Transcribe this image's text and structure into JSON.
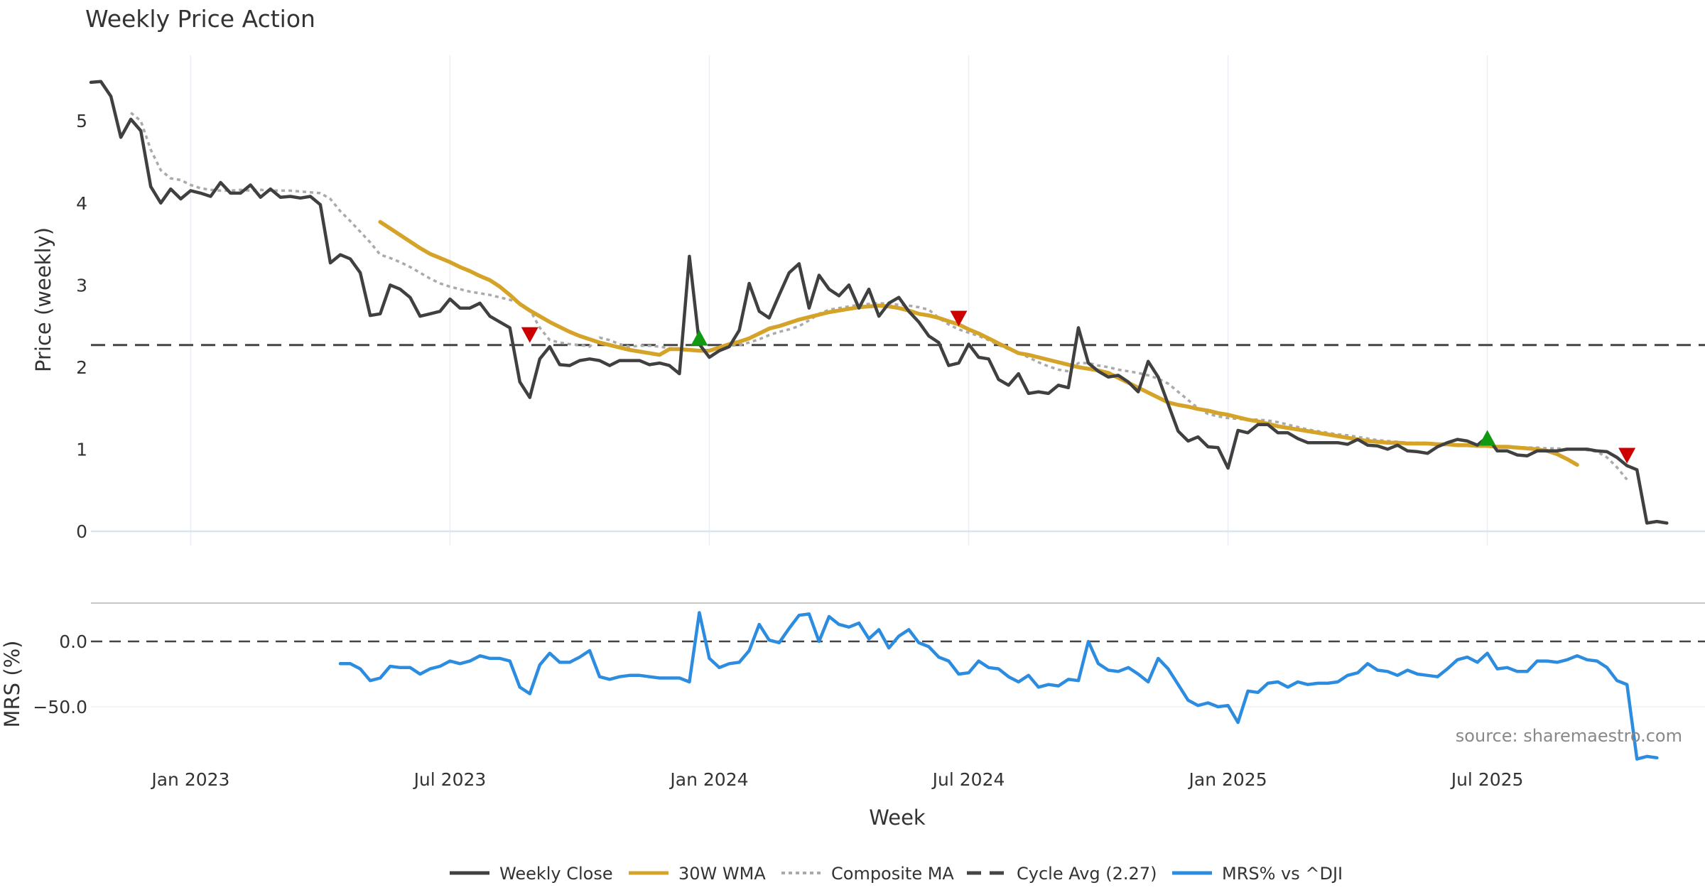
{
  "chart_data": {
    "type": "line",
    "title": "Weekly Price Action",
    "xlabel": "Week",
    "source": "source: sharemaestro.com",
    "x_ticks": [
      {
        "label": "Jan 2023",
        "week": 10
      },
      {
        "label": "Jul 2023",
        "week": 36
      },
      {
        "label": "Jan 2024",
        "week": 62
      },
      {
        "label": "Jul 2024",
        "week": 88
      },
      {
        "label": "Jan 2025",
        "week": 114
      },
      {
        "label": "Jul 2025",
        "week": 140
      }
    ],
    "price_panel": {
      "ylabel": "Price (weekly)",
      "ylim": [
        0,
        5.85
      ],
      "yticks": [
        0,
        1,
        2,
        3,
        4,
        5
      ],
      "cycle_avg": 2.27,
      "series": [
        {
          "name": "Weekly Close",
          "color": "#404040",
          "start": 0,
          "values": [
            5.47,
            5.48,
            5.3,
            4.8,
            5.02,
            4.88,
            4.2,
            4.0,
            4.17,
            4.05,
            4.15,
            4.12,
            4.08,
            4.25,
            4.12,
            4.12,
            4.22,
            4.07,
            4.17,
            4.07,
            4.08,
            4.06,
            4.08,
            3.98,
            3.27,
            3.37,
            3.32,
            3.15,
            2.63,
            2.65,
            3.0,
            2.95,
            2.85,
            2.62,
            2.65,
            2.68,
            2.83,
            2.72,
            2.72,
            2.78,
            2.62,
            2.55,
            2.48,
            1.82,
            1.63,
            2.1,
            2.25,
            2.03,
            2.02,
            2.08,
            2.1,
            2.08,
            2.02,
            2.08,
            2.08,
            2.08,
            2.03,
            2.05,
            2.02,
            1.92,
            3.35,
            2.28,
            2.12,
            2.2,
            2.25,
            2.45,
            3.02,
            2.68,
            2.6,
            2.88,
            3.15,
            3.26,
            2.72,
            3.12,
            2.95,
            2.87,
            3.0,
            2.72,
            2.95,
            2.62,
            2.78,
            2.85,
            2.68,
            2.55,
            2.38,
            2.3,
            2.02,
            2.05,
            2.28,
            2.12,
            2.1,
            1.85,
            1.78,
            1.92,
            1.68,
            1.7,
            1.68,
            1.78,
            1.75,
            2.48,
            2.05,
            1.95,
            1.88,
            1.9,
            1.82,
            1.7,
            2.07,
            1.88,
            1.55,
            1.22,
            1.1,
            1.15,
            1.03,
            1.02,
            0.77,
            1.23,
            1.2,
            1.3,
            1.3,
            1.2,
            1.2,
            1.13,
            1.08,
            1.08,
            1.08,
            1.08,
            1.06,
            1.12,
            1.05,
            1.04,
            1.0,
            1.05,
            0.98,
            0.97,
            0.95,
            1.03,
            1.08,
            1.12,
            1.1,
            1.05,
            1.15,
            0.98,
            0.98,
            0.93,
            0.92,
            0.98,
            0.98,
            0.98,
            1.0,
            1.0,
            1.0,
            0.98,
            0.97,
            0.9,
            0.8,
            0.75,
            0.1,
            0.12,
            0.1
          ]
        },
        {
          "name": "30W WMA",
          "color": "#D4A328",
          "start": 29,
          "values": [
            3.77,
            3.69,
            3.61,
            3.53,
            3.45,
            3.38,
            3.33,
            3.28,
            3.22,
            3.17,
            3.11,
            3.06,
            2.98,
            2.88,
            2.77,
            2.69,
            2.62,
            2.55,
            2.49,
            2.43,
            2.38,
            2.34,
            2.3,
            2.27,
            2.24,
            2.21,
            2.19,
            2.17,
            2.15,
            2.22,
            2.22,
            2.21,
            2.2,
            2.2,
            2.24,
            2.28,
            2.31,
            2.35,
            2.41,
            2.47,
            2.5,
            2.54,
            2.58,
            2.61,
            2.64,
            2.67,
            2.69,
            2.71,
            2.73,
            2.74,
            2.75,
            2.74,
            2.72,
            2.69,
            2.65,
            2.63,
            2.6,
            2.56,
            2.52,
            2.46,
            2.41,
            2.35,
            2.29,
            2.23,
            2.17,
            2.15,
            2.12,
            2.09,
            2.06,
            2.03,
            2.0,
            1.98,
            1.96,
            1.93,
            1.87,
            1.81,
            1.75,
            1.69,
            1.63,
            1.57,
            1.54,
            1.52,
            1.49,
            1.47,
            1.44,
            1.42,
            1.39,
            1.36,
            1.34,
            1.31,
            1.28,
            1.26,
            1.24,
            1.22,
            1.2,
            1.18,
            1.16,
            1.14,
            1.12,
            1.1,
            1.09,
            1.08,
            1.08,
            1.07,
            1.07,
            1.07,
            1.06,
            1.06,
            1.05,
            1.05,
            1.04,
            1.04,
            1.03,
            1.03,
            1.02,
            1.01,
            1.0,
            0.98,
            0.94,
            0.88,
            0.81
          ]
        },
        {
          "name": "Composite MA",
          "color": "#AAAAAA",
          "start": 4,
          "values": [
            5.1,
            5.0,
            4.65,
            4.4,
            4.3,
            4.28,
            4.22,
            4.18,
            4.16,
            4.15,
            4.15,
            4.16,
            4.15,
            4.16,
            4.15,
            4.15,
            4.15,
            4.14,
            4.13,
            4.12,
            4.05,
            3.9,
            3.78,
            3.65,
            3.52,
            3.37,
            3.33,
            3.28,
            3.22,
            3.15,
            3.08,
            3.02,
            2.98,
            2.95,
            2.92,
            2.9,
            2.88,
            2.85,
            2.82,
            2.78,
            2.7,
            2.48,
            2.33,
            2.3,
            2.28,
            2.27,
            2.25,
            2.36,
            2.33,
            2.28,
            2.25,
            2.26,
            2.26,
            2.25,
            2.23,
            2.22,
            2.2,
            2.2,
            2.21,
            2.24,
            2.26,
            2.27,
            2.3,
            2.34,
            2.39,
            2.43,
            2.46,
            2.5,
            2.57,
            2.65,
            2.7,
            2.72,
            2.74,
            2.76,
            2.77,
            2.78,
            2.77,
            2.76,
            2.75,
            2.73,
            2.7,
            2.6,
            2.52,
            2.46,
            2.42,
            2.38,
            2.33,
            2.27,
            2.22,
            2.17,
            2.12,
            2.06,
            2.01,
            1.97,
            1.95,
            2.05,
            2.05,
            2.02,
            2.0,
            1.97,
            1.95,
            1.93,
            1.9,
            1.86,
            1.8,
            1.7,
            1.6,
            1.5,
            1.43,
            1.4,
            1.38,
            1.37,
            1.36,
            1.36,
            1.35,
            1.33,
            1.3,
            1.27,
            1.24,
            1.22,
            1.2,
            1.18,
            1.17,
            1.15,
            1.13,
            1.11,
            1.1,
            1.09,
            1.08,
            1.08,
            1.08,
            1.07,
            1.06,
            1.06,
            1.05,
            1.05,
            1.04,
            1.03,
            1.03,
            1.02,
            1.02,
            1.02,
            1.01,
            1.01,
            1.0,
            1.0,
            0.99,
            0.97,
            0.9,
            0.78,
            0.63
          ]
        }
      ],
      "signals": [
        {
          "type": "sell",
          "week": 44,
          "value": 2.4,
          "color": "#CC0000"
        },
        {
          "type": "buy",
          "week": 61,
          "value": 2.35,
          "color": "#119911"
        },
        {
          "type": "sell",
          "week": 87,
          "value": 2.6,
          "color": "#CC0000"
        },
        {
          "type": "buy",
          "week": 140,
          "value": 1.13,
          "color": "#119911"
        },
        {
          "type": "sell",
          "week": 154,
          "value": 0.93,
          "color": "#CC0000"
        }
      ]
    },
    "mrs_panel": {
      "ylabel": "MRS (%)",
      "ylim": [
        -92,
        30
      ],
      "yticks": [
        {
          "v": 0,
          "label": "0.0"
        },
        {
          "v": -50,
          "label": "−50.0"
        }
      ],
      "series": [
        {
          "name": "MRS% vs ^DJI",
          "color": "#2B8CE0",
          "start": 25,
          "values": [
            -17,
            -17,
            -21,
            -30,
            -28,
            -19,
            -20,
            -20,
            -25,
            -21,
            -19,
            -15,
            -17,
            -15,
            -11,
            -13,
            -13,
            -15,
            -35,
            -40,
            -18,
            -9,
            -16,
            -16,
            -12,
            -7,
            -27,
            -29,
            -27,
            -26,
            -26,
            -27,
            -28,
            -28,
            -28,
            -31,
            22,
            -13,
            -20,
            -17,
            -16,
            -7,
            13,
            1,
            -1,
            10,
            20,
            21,
            0,
            19,
            13,
            11,
            14,
            2,
            9,
            -5,
            4,
            9,
            -1,
            -4,
            -12,
            -15,
            -25,
            -24,
            -15,
            -20,
            -21,
            -27,
            -31,
            -26,
            -35,
            -33,
            -34,
            -29,
            -30,
            0,
            -17,
            -22,
            -23,
            -20,
            -25,
            -31,
            -13,
            -21,
            -33,
            -45,
            -49,
            -47,
            -50,
            -49,
            -62,
            -38,
            -39,
            -32,
            -31,
            -35,
            -31,
            -33,
            -32,
            -32,
            -31,
            -26,
            -24,
            -17,
            -22,
            -23,
            -26,
            -22,
            -25,
            -26,
            -27,
            -21,
            -14,
            -12,
            -16,
            -9,
            -21,
            -20,
            -23,
            -23,
            -15,
            -15,
            -16,
            -14,
            -11,
            -14,
            -15,
            -20,
            -30,
            -33,
            -90,
            -88,
            -89
          ]
        }
      ]
    },
    "legend": [
      {
        "label": "Weekly Close",
        "style": "solid",
        "color": "#404040"
      },
      {
        "label": "30W WMA",
        "style": "solid",
        "color": "#D4A328"
      },
      {
        "label": "Composite MA",
        "style": "dotted",
        "color": "#AAAAAA"
      },
      {
        "label": "Cycle Avg (2.27)",
        "style": "dashed",
        "color": "#444444"
      },
      {
        "label": "MRS% vs ^DJI",
        "style": "solid",
        "color": "#2B8CE0"
      }
    ]
  }
}
